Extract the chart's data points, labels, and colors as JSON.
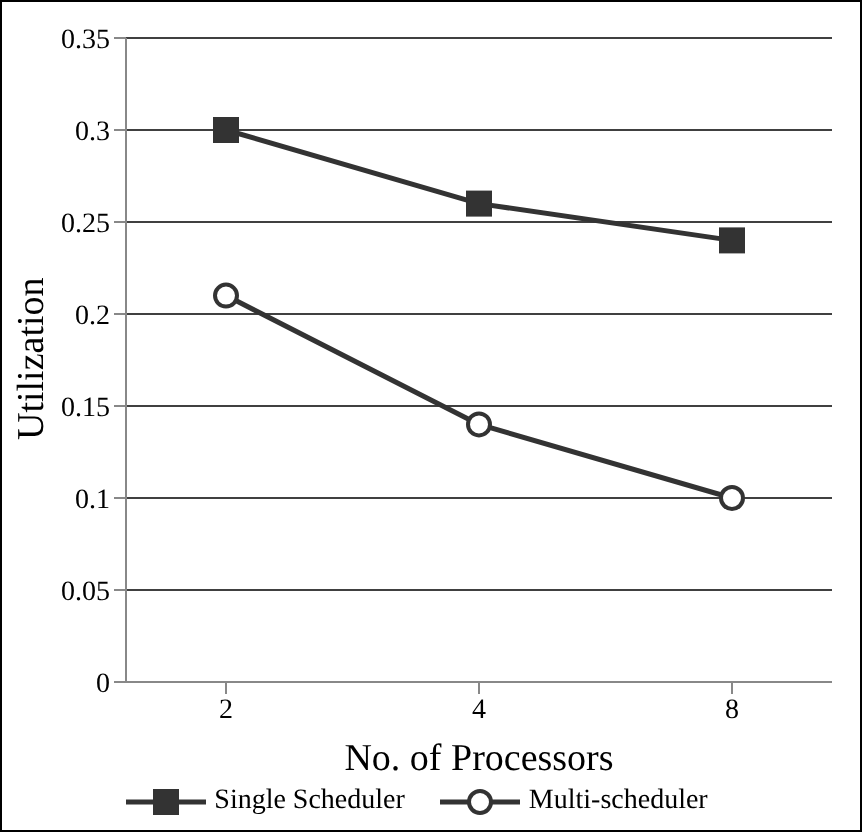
{
  "chart_data": {
    "type": "line",
    "xlabel": "No. of Processors",
    "ylabel": "Utilization",
    "categories": [
      "2",
      "4",
      "8"
    ],
    "series": [
      {
        "name": "Single Scheduler",
        "color": "#333333",
        "marker": "square",
        "values": [
          0.3,
          0.26,
          0.24
        ]
      },
      {
        "name": "Multi-scheduler",
        "color": "#333333",
        "marker": "circle",
        "values": [
          0.21,
          0.14,
          0.1
        ]
      }
    ],
    "ylim": [
      0,
      0.35
    ],
    "yticks": [
      0,
      0.05,
      0.1,
      0.15,
      0.2,
      0.25,
      0.3,
      0.35
    ],
    "grid": "y",
    "legend": "bottom",
    "line_style": "solid"
  }
}
